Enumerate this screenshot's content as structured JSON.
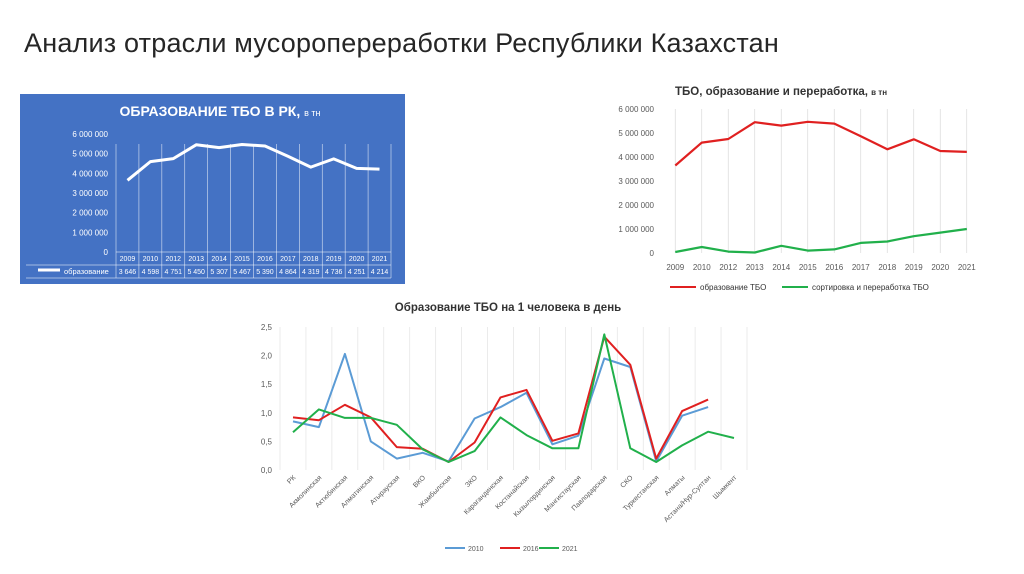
{
  "slide": {
    "title": "Анализ отрасли мусоропереработки Республики Казахстан"
  },
  "colors": {
    "panel_blue": "#4472c4",
    "red": "#e02020",
    "green": "#21b04b",
    "blue": "#5b9bd5"
  },
  "chart_data": [
    {
      "type": "line",
      "title": "ОБРАЗОВАНИЕ ТБО В РК,",
      "subtitle": "в тн",
      "categories": [
        "2009",
        "2010",
        "2012",
        "2013",
        "2014",
        "2015",
        "2016",
        "2017",
        "2018",
        "2019",
        "2020",
        "2021"
      ],
      "series": [
        {
          "name": "образование",
          "values": [
            3646000,
            4598000,
            4751000,
            5450000,
            5307000,
            5467000,
            5390000,
            4864000,
            4319000,
            4736000,
            4251000,
            4214000
          ]
        }
      ],
      "table_values": [
        "3 646",
        "4 598",
        "4 751",
        "5 450",
        "5 307",
        "5 467",
        "5 390",
        "4 864",
        "4 319",
        "4 736",
        "4 251",
        "4 214"
      ],
      "ylim": [
        0,
        6000000
      ],
      "yticks": [
        "0",
        "1 000 000",
        "2 000 000",
        "3 000 000",
        "4 000 000",
        "5 000 000",
        "6 000 000"
      ],
      "grid": false,
      "legend": "data-table"
    },
    {
      "type": "line",
      "title": "ТБО, образование и переработка,",
      "subtitle": "в тн",
      "categories": [
        "2009",
        "2010",
        "2012",
        "2013",
        "2014",
        "2015",
        "2016",
        "2017",
        "2018",
        "2019",
        "2020",
        "2021"
      ],
      "series": [
        {
          "name": "образование ТБО",
          "values": [
            3646000,
            4598000,
            4751000,
            5450000,
            5307000,
            5467000,
            5390000,
            4864000,
            4319000,
            4736000,
            4251000,
            4214000
          ]
        },
        {
          "name": "сортировка и переработка ТБО",
          "values": [
            40000,
            250000,
            60000,
            20000,
            300000,
            100000,
            150000,
            420000,
            480000,
            700000,
            850000,
            1000000
          ]
        }
      ],
      "ylim": [
        0,
        6000000
      ],
      "yticks": [
        "0",
        "1 000 000",
        "2 000 000",
        "3 000 000",
        "4 000 000",
        "5 000 000",
        "6 000 000"
      ],
      "grid": "vertical",
      "legend": "bottom"
    },
    {
      "type": "line",
      "title": "Образование ТБО на 1 человека в день",
      "categories": [
        "РК",
        "Акмолинская",
        "Актюбинская",
        "Алматинская",
        "Атырауская",
        "ВКО",
        "Жамбылская",
        "ЗКО",
        "Карагандинская",
        "Костанайская",
        "Кызылординская",
        "Мангистауская",
        "Павлодарская",
        "СКО",
        "Туркестанская",
        "Алматы",
        "Астана/Нур-Султан",
        "Шымкент"
      ],
      "series": [
        {
          "name": "2010",
          "values": [
            0.85,
            0.75,
            2.03,
            0.5,
            0.2,
            0.3,
            0.15,
            0.9,
            1.1,
            1.35,
            0.45,
            0.6,
            1.95,
            1.8,
            0.15,
            0.95,
            1.1,
            null
          ]
        },
        {
          "name": "2016",
          "values": [
            0.92,
            0.87,
            1.14,
            0.92,
            0.4,
            0.37,
            0.14,
            0.48,
            1.27,
            1.4,
            0.51,
            0.64,
            2.33,
            1.84,
            0.2,
            1.03,
            1.23,
            null
          ]
        },
        {
          "name": "2021",
          "values": [
            0.66,
            1.06,
            0.91,
            0.91,
            0.79,
            0.36,
            0.14,
            0.33,
            0.92,
            0.61,
            0.38,
            0.38,
            2.37,
            0.38,
            0.14,
            0.43,
            0.67,
            0.56
          ]
        }
      ],
      "ylim": [
        0,
        2.5
      ],
      "yticks": [
        "0,0",
        "0,5",
        "1,0",
        "1,5",
        "2,0",
        "2,5"
      ],
      "grid": "vertical",
      "legend": "bottom"
    }
  ]
}
